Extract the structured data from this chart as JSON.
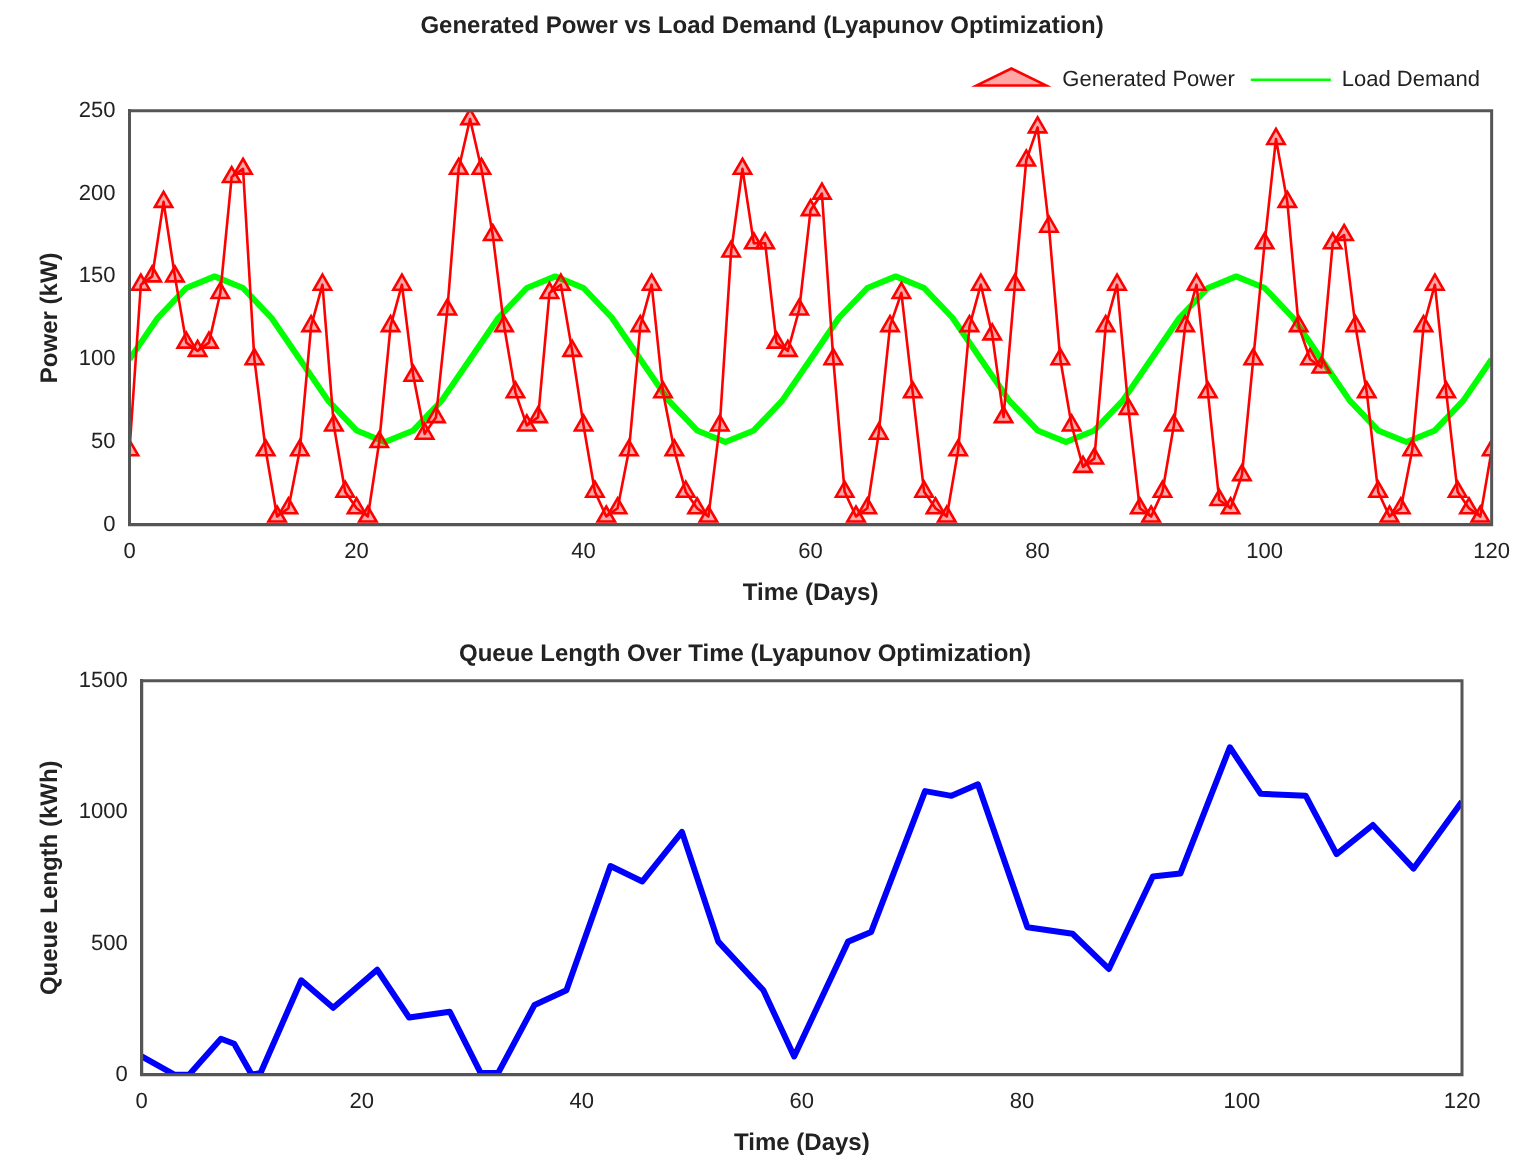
{
  "chart_data": [
    {
      "type": "line",
      "title": "Generated Power vs Load Demand (Lyapunov Optimization)",
      "xlabel": "Time (Days)",
      "ylabel": "Power (kW)",
      "xlim": [
        0,
        120
      ],
      "xticks": [
        0,
        20,
        40,
        60,
        80,
        100,
        120
      ],
      "ylim": [
        0,
        250
      ],
      "yticks": [
        0,
        50,
        100,
        150,
        200,
        250
      ],
      "grid": false,
      "legend": "top right",
      "x": [
        0,
        1,
        2,
        3,
        4,
        5,
        6,
        7,
        8,
        9,
        10,
        11,
        12,
        13,
        14,
        15,
        16,
        17,
        18,
        19,
        20,
        21,
        22,
        23,
        24,
        25,
        26,
        27,
        28,
        29,
        30,
        31,
        32,
        33,
        34,
        35,
        36,
        37,
        38,
        39,
        40,
        41,
        42,
        43,
        44,
        45,
        46,
        47,
        48,
        49,
        50,
        51,
        52,
        53,
        54,
        55,
        56,
        57,
        58,
        59,
        60,
        61,
        62,
        63,
        64,
        65,
        66,
        67,
        68,
        69,
        70,
        71,
        72,
        73,
        74,
        75,
        76,
        77,
        78,
        79,
        80,
        81,
        82,
        83,
        84,
        85,
        86,
        87,
        88,
        89,
        90,
        91,
        92,
        93,
        94,
        95,
        96,
        97,
        98,
        99,
        100,
        101,
        102,
        103,
        104,
        105,
        106,
        107,
        108,
        109,
        110,
        111,
        112,
        113,
        114,
        115,
        116,
        117,
        118,
        119,
        120
      ],
      "series": [
        {
          "name": "Generated Power",
          "color": "#ff0000",
          "marker": "triangle",
          "values": [
            45,
            145,
            150,
            195,
            150,
            110,
            105,
            110,
            140,
            210,
            215,
            100,
            45,
            5,
            10,
            45,
            120,
            145,
            60,
            20,
            10,
            5,
            50,
            120,
            145,
            90,
            55,
            65,
            130,
            215,
            245,
            215,
            175,
            120,
            80,
            60,
            65,
            140,
            145,
            105,
            60,
            20,
            5,
            10,
            45,
            120,
            145,
            80,
            45,
            20,
            10,
            5,
            60,
            165,
            215,
            170,
            170,
            110,
            105,
            130,
            190,
            200,
            100,
            20,
            5,
            10,
            55,
            120,
            140,
            80,
            20,
            10,
            5,
            45,
            120,
            145,
            115,
            65,
            145,
            220,
            240,
            180,
            100,
            60,
            35,
            40,
            120,
            145,
            70,
            10,
            5,
            20,
            60,
            120,
            145,
            80,
            15,
            10,
            30,
            100,
            170,
            233,
            195,
            120,
            100,
            95,
            170,
            175,
            120,
            80,
            20,
            5,
            10,
            45,
            120,
            145,
            80,
            20,
            10,
            5,
            45
          ]
        },
        {
          "name": "Load Demand",
          "color": "#00ff00",
          "marker": "none",
          "x": [
            0,
            2.5,
            5,
            7.5,
            10,
            12.5,
            15,
            17.5,
            20,
            22.5,
            25,
            27.5,
            30,
            32.5,
            35,
            37.5,
            40,
            42.5,
            45,
            47.5,
            50,
            52.5,
            55,
            57.5,
            60,
            62.5,
            65,
            67.5,
            70,
            72.5,
            75,
            77.5,
            80,
            82.5,
            85,
            87.5,
            90,
            92.5,
            95,
            97.5,
            100,
            102.5,
            105,
            107.5,
            110,
            112.5,
            115,
            117.5,
            120
          ],
          "values": [
            100,
            125,
            143,
            150,
            143,
            125,
            100,
            75,
            57,
            50,
            57,
            75,
            100,
            125,
            143,
            150,
            143,
            125,
            100,
            75,
            57,
            50,
            57,
            75,
            100,
            125,
            143,
            150,
            143,
            125,
            100,
            75,
            57,
            50,
            57,
            75,
            100,
            125,
            143,
            150,
            143,
            125,
            100,
            75,
            57,
            50,
            57,
            75,
            100
          ]
        }
      ]
    },
    {
      "type": "line",
      "title": "Queue Length Over Time (Lyapunov Optimization)",
      "xlabel": "Time (Days)",
      "ylabel": "Queue Length (kWh)",
      "xlim": [
        0,
        120
      ],
      "xticks": [
        0,
        20,
        40,
        60,
        80,
        100,
        120
      ],
      "ylim": [
        0,
        1500
      ],
      "yticks": [
        0,
        500,
        1000,
        1500
      ],
      "grid": false,
      "series": [
        {
          "color": "#0000ff",
          "x": [
            0,
            3,
            4.3,
            7.2,
            8.4,
            10,
            10.8,
            14.5,
            17.4,
            21.4,
            24.3,
            28,
            30.8,
            32.4,
            35.7,
            38.6,
            42.6,
            45.5,
            49.1,
            52.4,
            56.5,
            59.3,
            64.2,
            66.3,
            71.2,
            73.6,
            76,
            80.5,
            84.6,
            87.9,
            91.9,
            94.4,
            98.9,
            101.7,
            105.8,
            108.6,
            111.9,
            115.6,
            120
          ],
          "values": [
            70,
            0,
            0,
            137,
            118,
            0,
            7,
            360,
            255,
            400,
            218,
            240,
            7,
            7,
            266,
            322,
            795,
            736,
            925,
            507,
            322,
            70,
            507,
            544,
            1080,
            1062,
            1106,
            562,
            537,
            403,
            755,
            766,
            1247,
            1070,
            1062,
            840,
            951,
            785,
            1040
          ]
        }
      ]
    }
  ]
}
